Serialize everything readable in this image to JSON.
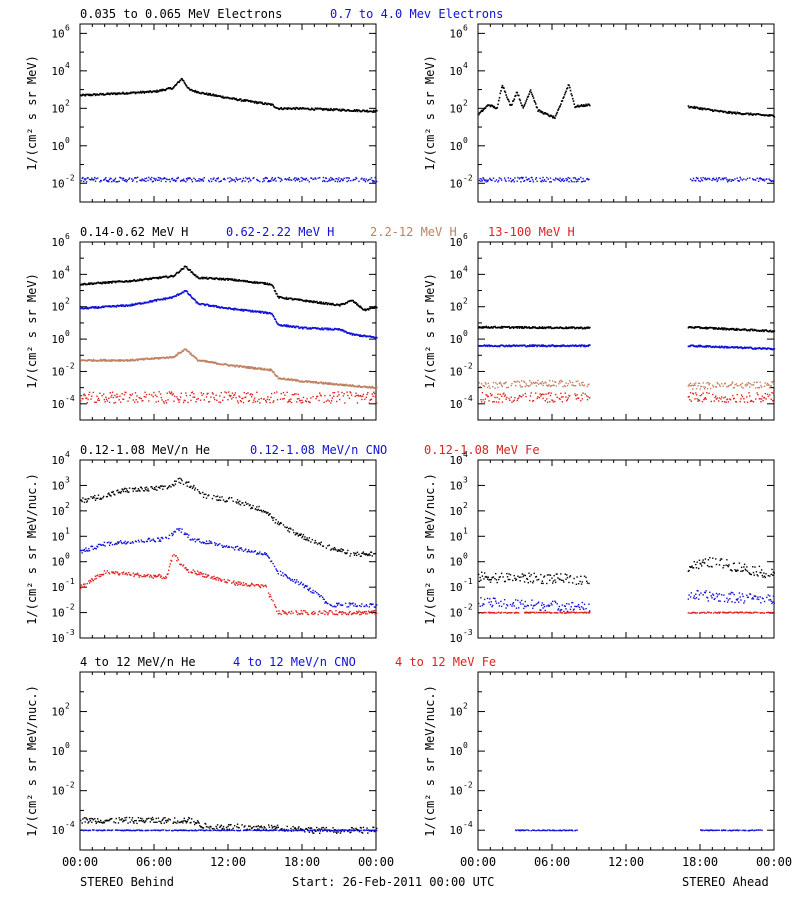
{
  "colors": {
    "black": "#000000",
    "blue": "#1010d8",
    "tan": "#c08060",
    "red": "#e02020"
  },
  "footer": {
    "left_label": "STEREO Behind",
    "center_label": "Start: 26-Feb-2011 00:00 UTC",
    "right_label": "STEREO Ahead"
  },
  "x_tick_labels": [
    "00:00",
    "06:00",
    "12:00",
    "18:00",
    "00:00"
  ],
  "chart_data": [
    {
      "type": "scatter",
      "row": 0,
      "panel": "STEREO Behind",
      "yscale": "log",
      "ylabel": "1/(cm² s sr MeV)",
      "ylim_exp": [
        -3,
        6.5
      ],
      "y_tick_exponents": [
        -2,
        0,
        2,
        4,
        6
      ],
      "y_tick_base": "10",
      "legend": [
        {
          "label": "0.035 to 0.065 MeV Electrons",
          "color": "#000000"
        },
        {
          "label": "0.7 to 4.0 Mev Electrons",
          "color": "#1010d8"
        }
      ],
      "series": [
        {
          "color": "#000000",
          "style": "line",
          "exp_knots": [
            [
              0,
              2.7
            ],
            [
              3,
              2.8
            ],
            [
              6,
              2.9
            ],
            [
              7.5,
              3.1
            ],
            [
              8.2,
              3.6
            ],
            [
              8.8,
              3.0
            ],
            [
              10,
              2.8
            ],
            [
              12.5,
              2.5
            ],
            [
              15.5,
              2.2
            ],
            [
              16,
              2.0
            ],
            [
              17.5,
              2.0
            ],
            [
              20,
              1.95
            ],
            [
              24,
              1.85
            ]
          ]
        },
        {
          "color": "#1010d8",
          "style": "dots",
          "exp_knots": [
            [
              0,
              -1.8
            ],
            [
              24,
              -1.8
            ]
          ],
          "scatter": 0.12
        }
      ]
    },
    {
      "type": "scatter",
      "row": 0,
      "panel": "STEREO Ahead",
      "yscale": "log",
      "ylabel": "1/(cm² s sr MeV)",
      "ylim_exp": [
        -3,
        6.5
      ],
      "y_tick_exponents": [
        -2,
        0,
        2,
        4,
        6
      ],
      "y_tick_base": "10",
      "series": [
        {
          "color": "#000000",
          "style": "line",
          "segments": [
            [
              0,
              9
            ],
            [
              17,
              24
            ]
          ],
          "exp_knots": [
            [
              0,
              1.7
            ],
            [
              0.8,
              2.2
            ],
            [
              1.5,
              2.0
            ],
            [
              1.9,
              3.3
            ],
            [
              2.6,
              2.1
            ],
            [
              3.1,
              2.9
            ],
            [
              3.6,
              2.0
            ],
            [
              4.2,
              3.0
            ],
            [
              4.8,
              1.9
            ],
            [
              5.8,
              1.6
            ],
            [
              6.2,
              1.5
            ],
            [
              7.3,
              3.3
            ],
            [
              7.8,
              2.1
            ],
            [
              9,
              2.2
            ],
            [
              17,
              2.1
            ],
            [
              20,
              1.8
            ],
            [
              24,
              1.6
            ]
          ]
        },
        {
          "color": "#1010d8",
          "style": "dots",
          "segments": [
            [
              0,
              9
            ],
            [
              17,
              24
            ]
          ],
          "exp_knots": [
            [
              0,
              -1.8
            ],
            [
              24,
              -1.8
            ]
          ],
          "scatter": 0.12
        }
      ]
    },
    {
      "type": "scatter",
      "row": 1,
      "panel": "STEREO Behind",
      "yscale": "log",
      "ylabel": "1/(cm² s sr MeV)",
      "ylim_exp": [
        -5,
        6
      ],
      "y_tick_exponents": [
        -4,
        -2,
        0,
        2,
        4,
        6
      ],
      "y_tick_base": "10",
      "legend": [
        {
          "label": "0.14-0.62 MeV H",
          "color": "#000000"
        },
        {
          "label": "0.62-2.22 MeV H",
          "color": "#1010d8"
        },
        {
          "label": "2.2-12 MeV H",
          "color": "#c08060"
        },
        {
          "label": "13-100 MeV H",
          "color": "#e02020"
        }
      ],
      "series": [
        {
          "color": "#000000",
          "style": "line",
          "exp_knots": [
            [
              0,
              3.4
            ],
            [
              4,
              3.6
            ],
            [
              7.5,
              3.9
            ],
            [
              8.5,
              4.5
            ],
            [
              9.5,
              3.8
            ],
            [
              12,
              3.7
            ],
            [
              15.5,
              3.4
            ],
            [
              16,
              2.6
            ],
            [
              18,
              2.4
            ],
            [
              21,
              2.1
            ],
            [
              22,
              2.4
            ],
            [
              23,
              1.8
            ],
            [
              24,
              2.0
            ]
          ]
        },
        {
          "color": "#1010d8",
          "style": "line",
          "exp_knots": [
            [
              0,
              1.9
            ],
            [
              4,
              2.1
            ],
            [
              7.5,
              2.6
            ],
            [
              8.5,
              3.0
            ],
            [
              9.5,
              2.2
            ],
            [
              12,
              1.9
            ],
            [
              15.5,
              1.6
            ],
            [
              16,
              0.9
            ],
            [
              18,
              0.7
            ],
            [
              21,
              0.6
            ],
            [
              22,
              0.3
            ],
            [
              24,
              0.1
            ]
          ]
        },
        {
          "color": "#c08060",
          "style": "line",
          "exp_knots": [
            [
              0,
              -1.3
            ],
            [
              4,
              -1.3
            ],
            [
              7.5,
              -1.1
            ],
            [
              8.5,
              -0.6
            ],
            [
              9.5,
              -1.3
            ],
            [
              12,
              -1.6
            ],
            [
              15.5,
              -1.9
            ],
            [
              16,
              -2.4
            ],
            [
              18,
              -2.6
            ],
            [
              21,
              -2.8
            ],
            [
              24,
              -3.0
            ]
          ]
        },
        {
          "color": "#e02020",
          "style": "dots",
          "exp_knots": [
            [
              0,
              -3.6
            ],
            [
              24,
              -3.6
            ]
          ],
          "scatter": 0.35
        }
      ]
    },
    {
      "type": "scatter",
      "row": 1,
      "panel": "STEREO Ahead",
      "yscale": "log",
      "ylabel": "1/(cm² s sr MeV)",
      "ylim_exp": [
        -5,
        6
      ],
      "y_tick_exponents": [
        -4,
        -2,
        0,
        2,
        4,
        6
      ],
      "y_tick_base": "10",
      "series": [
        {
          "color": "#000000",
          "style": "line",
          "segments": [
            [
              0,
              9
            ],
            [
              17,
              24
            ]
          ],
          "exp_knots": [
            [
              0,
              0.75
            ],
            [
              9,
              0.7
            ],
            [
              17,
              0.75
            ],
            [
              24,
              0.5
            ]
          ]
        },
        {
          "color": "#1010d8",
          "style": "line",
          "segments": [
            [
              0,
              9
            ],
            [
              17,
              24
            ]
          ],
          "exp_knots": [
            [
              0,
              -0.4
            ],
            [
              9,
              -0.4
            ],
            [
              17,
              -0.4
            ],
            [
              24,
              -0.6
            ]
          ]
        },
        {
          "color": "#c08060",
          "style": "dots",
          "segments": [
            [
              0,
              9
            ],
            [
              17,
              24
            ]
          ],
          "exp_knots": [
            [
              0,
              -2.9
            ],
            [
              5,
              -2.7
            ],
            [
              9,
              -2.8
            ],
            [
              17,
              -2.9
            ],
            [
              24,
              -2.8
            ]
          ],
          "scatter": 0.2
        },
        {
          "color": "#e02020",
          "style": "dots",
          "segments": [
            [
              0,
              9
            ],
            [
              17,
              24
            ]
          ],
          "exp_knots": [
            [
              0,
              -3.6
            ],
            [
              24,
              -3.6
            ]
          ],
          "scatter": 0.3
        }
      ]
    },
    {
      "type": "scatter",
      "row": 2,
      "panel": "STEREO Behind",
      "yscale": "log",
      "ylabel": "1/(cm² s sr MeV/nuc.)",
      "ylim_exp": [
        -3,
        4
      ],
      "y_tick_exponents": [
        -3,
        -2,
        -1,
        0,
        1,
        2,
        3,
        4
      ],
      "y_tick_base": "10",
      "legend": [
        {
          "label": "0.12-1.08 MeV/n He",
          "color": "#000000"
        },
        {
          "label": "0.12-1.08 MeV/n CNO",
          "color": "#1010d8"
        },
        {
          "label": "0.12-1.08 MeV Fe",
          "color": "#e02020"
        }
      ],
      "series": [
        {
          "color": "#000000",
          "style": "dots",
          "exp_knots": [
            [
              0,
              2.4
            ],
            [
              2,
              2.6
            ],
            [
              3.5,
              2.8
            ],
            [
              7,
              2.9
            ],
            [
              8,
              3.2
            ],
            [
              9,
              3.0
            ],
            [
              10,
              2.6
            ],
            [
              12.5,
              2.4
            ],
            [
              15,
              2.0
            ],
            [
              16,
              1.5
            ],
            [
              18,
              1.0
            ],
            [
              20,
              0.6
            ],
            [
              22,
              0.3
            ],
            [
              24,
              0.3
            ]
          ],
          "scatter": 0.1
        },
        {
          "color": "#1010d8",
          "style": "dots",
          "exp_knots": [
            [
              0,
              0.4
            ],
            [
              2,
              0.7
            ],
            [
              4,
              0.8
            ],
            [
              7,
              0.9
            ],
            [
              8,
              1.3
            ],
            [
              9,
              0.9
            ],
            [
              12,
              0.6
            ],
            [
              15,
              0.3
            ],
            [
              16,
              -0.4
            ],
            [
              18,
              -0.9
            ],
            [
              19.5,
              -1.4
            ],
            [
              20,
              -1.7
            ],
            [
              24,
              -1.7
            ]
          ],
          "scatter": 0.08
        },
        {
          "color": "#e02020",
          "style": "dots",
          "exp_knots": [
            [
              0,
              -1.0
            ],
            [
              2,
              -0.4
            ],
            [
              4,
              -0.5
            ],
            [
              7,
              -0.6
            ],
            [
              7.5,
              0.3
            ],
            [
              8.5,
              -0.3
            ],
            [
              12,
              -0.8
            ],
            [
              15,
              -1.0
            ],
            [
              16,
              -2.0
            ],
            [
              24,
              -2.0
            ]
          ],
          "scatter": 0.08
        }
      ]
    },
    {
      "type": "scatter",
      "row": 2,
      "panel": "STEREO Ahead",
      "yscale": "log",
      "ylabel": "1/(cm² s sr MeV/nuc.)",
      "ylim_exp": [
        -3,
        4
      ],
      "y_tick_exponents": [
        -3,
        -2,
        -1,
        0,
        1,
        2,
        3,
        4
      ],
      "y_tick_base": "10",
      "series": [
        {
          "color": "#000000",
          "style": "dots",
          "segments": [
            [
              0,
              9
            ],
            [
              17,
              24
            ]
          ],
          "exp_knots": [
            [
              0,
              -0.6
            ],
            [
              9,
              -0.7
            ],
            [
              17,
              -0.2
            ],
            [
              19,
              0.0
            ],
            [
              24,
              -0.5
            ]
          ],
          "scatter": 0.2
        },
        {
          "color": "#1010d8",
          "style": "dots",
          "segments": [
            [
              0,
              9
            ],
            [
              17,
              24
            ]
          ],
          "exp_knots": [
            [
              0,
              -1.6
            ],
            [
              9,
              -1.8
            ],
            [
              17,
              -1.3
            ],
            [
              24,
              -1.5
            ]
          ],
          "scatter": 0.2
        },
        {
          "color": "#e02020",
          "style": "dots",
          "segments": [
            [
              0,
              9
            ],
            [
              17,
              24
            ]
          ],
          "exp_knots": [
            [
              0,
              -2.0
            ],
            [
              24,
              -2.0
            ]
          ],
          "scatter": 0.02
        }
      ]
    },
    {
      "type": "scatter",
      "row": 3,
      "panel": "STEREO Behind",
      "yscale": "log",
      "ylabel": "1/(cm² s sr MeV/nuc.)",
      "ylim_exp": [
        -5,
        4
      ],
      "y_tick_exponents": [
        -4,
        -2,
        0,
        2
      ],
      "y_tick_base": "10",
      "legend": [
        {
          "label": "4 to 12 MeV/n He",
          "color": "#000000"
        },
        {
          "label": "4 to 12 MeV/n CNO",
          "color": "#1010d8"
        },
        {
          "label": "4 to 12 MeV Fe",
          "color": "#e02020"
        }
      ],
      "series": [
        {
          "color": "#000000",
          "style": "dots",
          "exp_knots": [
            [
              0,
              -3.5
            ],
            [
              9,
              -3.5
            ],
            [
              10,
              -3.8
            ],
            [
              17,
              -3.9
            ],
            [
              19,
              -4.0
            ]
          ],
          "scatter": 0.15
        },
        {
          "color": "#1010d8",
          "style": "dots",
          "exp_knots": [
            [
              0,
              -4.0
            ],
            [
              24,
              -4.0
            ]
          ],
          "scatter": 0.02
        }
      ]
    },
    {
      "type": "scatter",
      "row": 3,
      "panel": "STEREO Ahead",
      "yscale": "log",
      "ylabel": "1/(cm² s sr MeV/nuc.)",
      "ylim_exp": [
        -5,
        4
      ],
      "y_tick_exponents": [
        -4,
        -2,
        0,
        2
      ],
      "y_tick_base": "10",
      "series": [
        {
          "color": "#1010d8",
          "style": "dots",
          "segments": [
            [
              3,
              8
            ],
            [
              18,
              23
            ]
          ],
          "exp_knots": [
            [
              0,
              -4.0
            ],
            [
              24,
              -4.0
            ]
          ],
          "scatter": 0.02
        }
      ]
    }
  ]
}
